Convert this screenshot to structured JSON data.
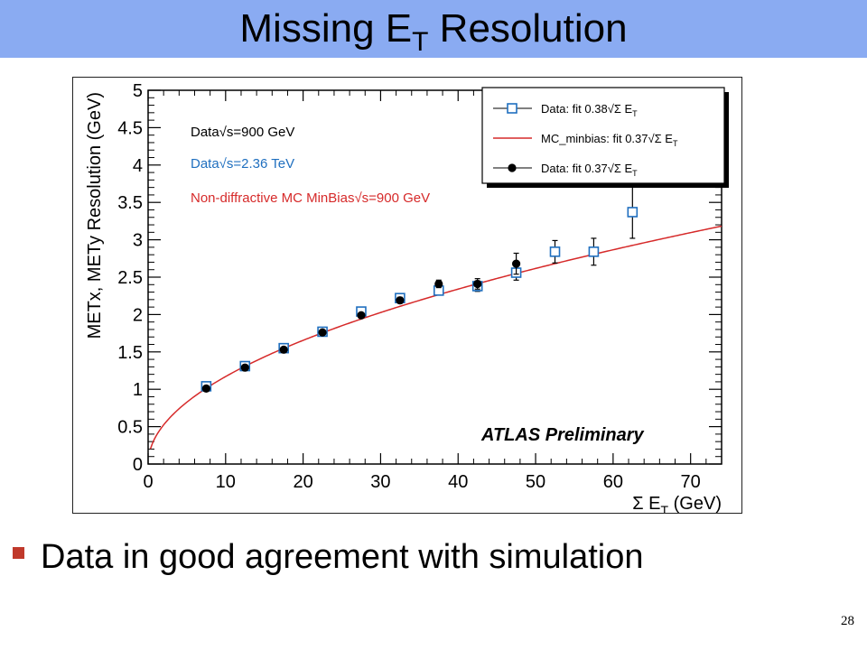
{
  "slide": {
    "title_main": "Missing E",
    "title_sub": "T",
    "title_rest": " Resolution",
    "bullet": "Data in good agreement with simulation",
    "page_number": "28"
  },
  "colors": {
    "title_bar": "#8aabf2",
    "bullet": "#c0392b",
    "data_2360": "#1f6fbf",
    "mc_curve": "#d62a2a",
    "data_900": "#000000"
  },
  "chart_data": {
    "type": "scatter",
    "xlabel": "Σ E_T  (GeV)",
    "ylabel": "METx, METy Resolution (GeV)",
    "xlim": [
      0,
      74
    ],
    "ylim": [
      0,
      5
    ],
    "x_ticks": [
      "0",
      "10",
      "20",
      "30",
      "40",
      "50",
      "60",
      "70"
    ],
    "y_ticks": [
      "0",
      "0.5",
      "1",
      "1.5",
      "2",
      "2.5",
      "3",
      "3.5",
      "4",
      "4.5",
      "5"
    ],
    "legend_position": "top-right",
    "legend": [
      "Data: fit 0.38√Σ E_T",
      "MC_minbias: fit 0.37√Σ E_T",
      "Data: fit 0.37√Σ E_T"
    ],
    "annotations": [
      {
        "text": "Data√s=900 GeV",
        "color": "#000000"
      },
      {
        "text": "Data√s=2.36 TeV",
        "color": "#1f6fbf"
      },
      {
        "text": "Non-diffractive MC MinBias√s=900 GeV",
        "color": "#d62a2a"
      }
    ],
    "watermark": "ATLAS Preliminary",
    "series": [
      {
        "name": "Data: fit 0.38√Σ E_T",
        "marker": "open-square",
        "x": [
          7.5,
          12.5,
          17.5,
          22.5,
          27.5,
          32.5,
          37.5,
          42.5,
          47.5,
          52.5,
          57.5,
          62.5
        ],
        "y": [
          1.04,
          1.31,
          1.55,
          1.77,
          2.04,
          2.22,
          2.32,
          2.38,
          2.56,
          2.84,
          2.84,
          3.37
        ],
        "err": [
          0.02,
          0.03,
          0.03,
          0.03,
          0.03,
          0.04,
          0.05,
          0.07,
          0.1,
          0.15,
          0.18,
          0.35
        ]
      },
      {
        "name": "MC_minbias: fit 0.37√Σ E_T",
        "type": "line",
        "function": "0.37*sqrt(x)",
        "x_range": [
          0.3,
          74
        ]
      },
      {
        "name": "Data: fit 0.37√Σ E_T",
        "marker": "filled-circle",
        "x": [
          7.5,
          12.5,
          17.5,
          22.5,
          27.5,
          32.5,
          37.5,
          42.5,
          47.5
        ],
        "y": [
          1.01,
          1.29,
          1.53,
          1.76,
          1.99,
          2.19,
          2.41,
          2.41,
          2.68
        ],
        "err": [
          0.02,
          0.02,
          0.03,
          0.03,
          0.03,
          0.04,
          0.05,
          0.07,
          0.14
        ]
      }
    ]
  }
}
